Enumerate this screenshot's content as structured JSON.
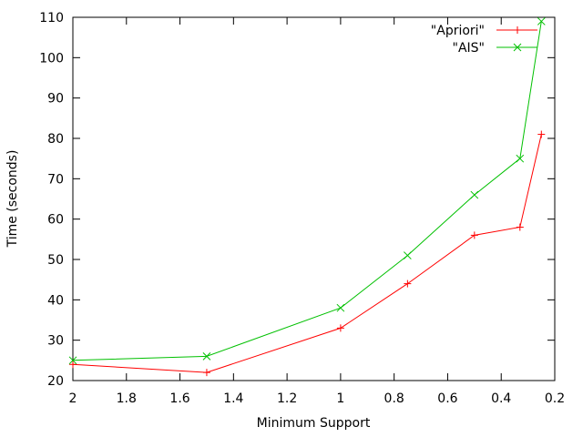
{
  "chart_data": {
    "type": "line",
    "title": "",
    "xlabel": "Minimum Support",
    "ylabel": "Time (seconds)",
    "xlim": [
      2,
      0.2
    ],
    "ylim": [
      20,
      110
    ],
    "x_reversed": true,
    "grid": false,
    "legend_position": "top-right",
    "x_ticks": [
      2,
      1.8,
      1.6,
      1.4,
      1.2,
      1,
      0.8,
      0.6,
      0.4,
      0.2
    ],
    "x_tick_labels": [
      "2",
      "1.8",
      "1.6",
      "1.4",
      "1.2",
      "1",
      "0.8",
      "0.6",
      "0.4",
      "0.2"
    ],
    "y_ticks": [
      20,
      30,
      40,
      50,
      60,
      70,
      80,
      90,
      100,
      110
    ],
    "y_tick_labels": [
      "20",
      "30",
      "40",
      "50",
      "60",
      "70",
      "80",
      "90",
      "100",
      "110"
    ],
    "series": [
      {
        "name": "\"Apriori\"",
        "color": "#ff0000",
        "marker": "plus",
        "x": [
          2,
          1.5,
          1,
          0.75,
          0.5,
          0.33,
          0.25
        ],
        "y": [
          24,
          22,
          33,
          44,
          56,
          58,
          81
        ]
      },
      {
        "name": "\"AIS\"",
        "color": "#00c000",
        "marker": "cross",
        "x": [
          2,
          1.5,
          1,
          0.75,
          0.5,
          0.33,
          0.25
        ],
        "y": [
          25,
          26,
          38,
          51,
          66,
          75,
          109
        ]
      }
    ]
  }
}
